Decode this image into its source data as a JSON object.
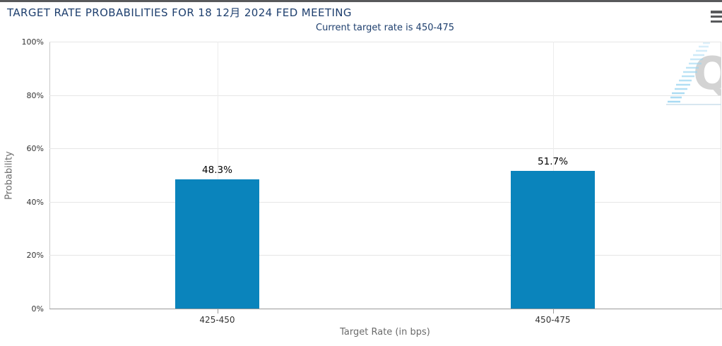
{
  "header": {
    "menu_icon": "hamburger",
    "accent_bar_color": "#58595b",
    "title_color": "#1e3f6e"
  },
  "chart_data": {
    "type": "bar",
    "title": "TARGET RATE PROBABILITIES FOR 18 12月 2024 FED MEETING",
    "subtitle": "Current target rate is 450-475",
    "categories": [
      "425-450",
      "450-475"
    ],
    "values": [
      48.3,
      51.7
    ],
    "value_labels": [
      "48.3%",
      "51.7%"
    ],
    "xlabel": "Target Rate (in bps)",
    "ylabel": "Probability",
    "ylim": [
      0,
      100
    ],
    "ytick_step": 20,
    "ytick_labels": [
      "0%",
      "20%",
      "40%",
      "60%",
      "80%",
      "100%"
    ],
    "grid": true,
    "legend": "none",
    "bar_color": "#0a84bc"
  },
  "watermark": {
    "letter": "Q",
    "letter_color": "#d3d3d3",
    "hatch_color": "#9ed7f2",
    "underline_color": "#ccdfeb"
  }
}
